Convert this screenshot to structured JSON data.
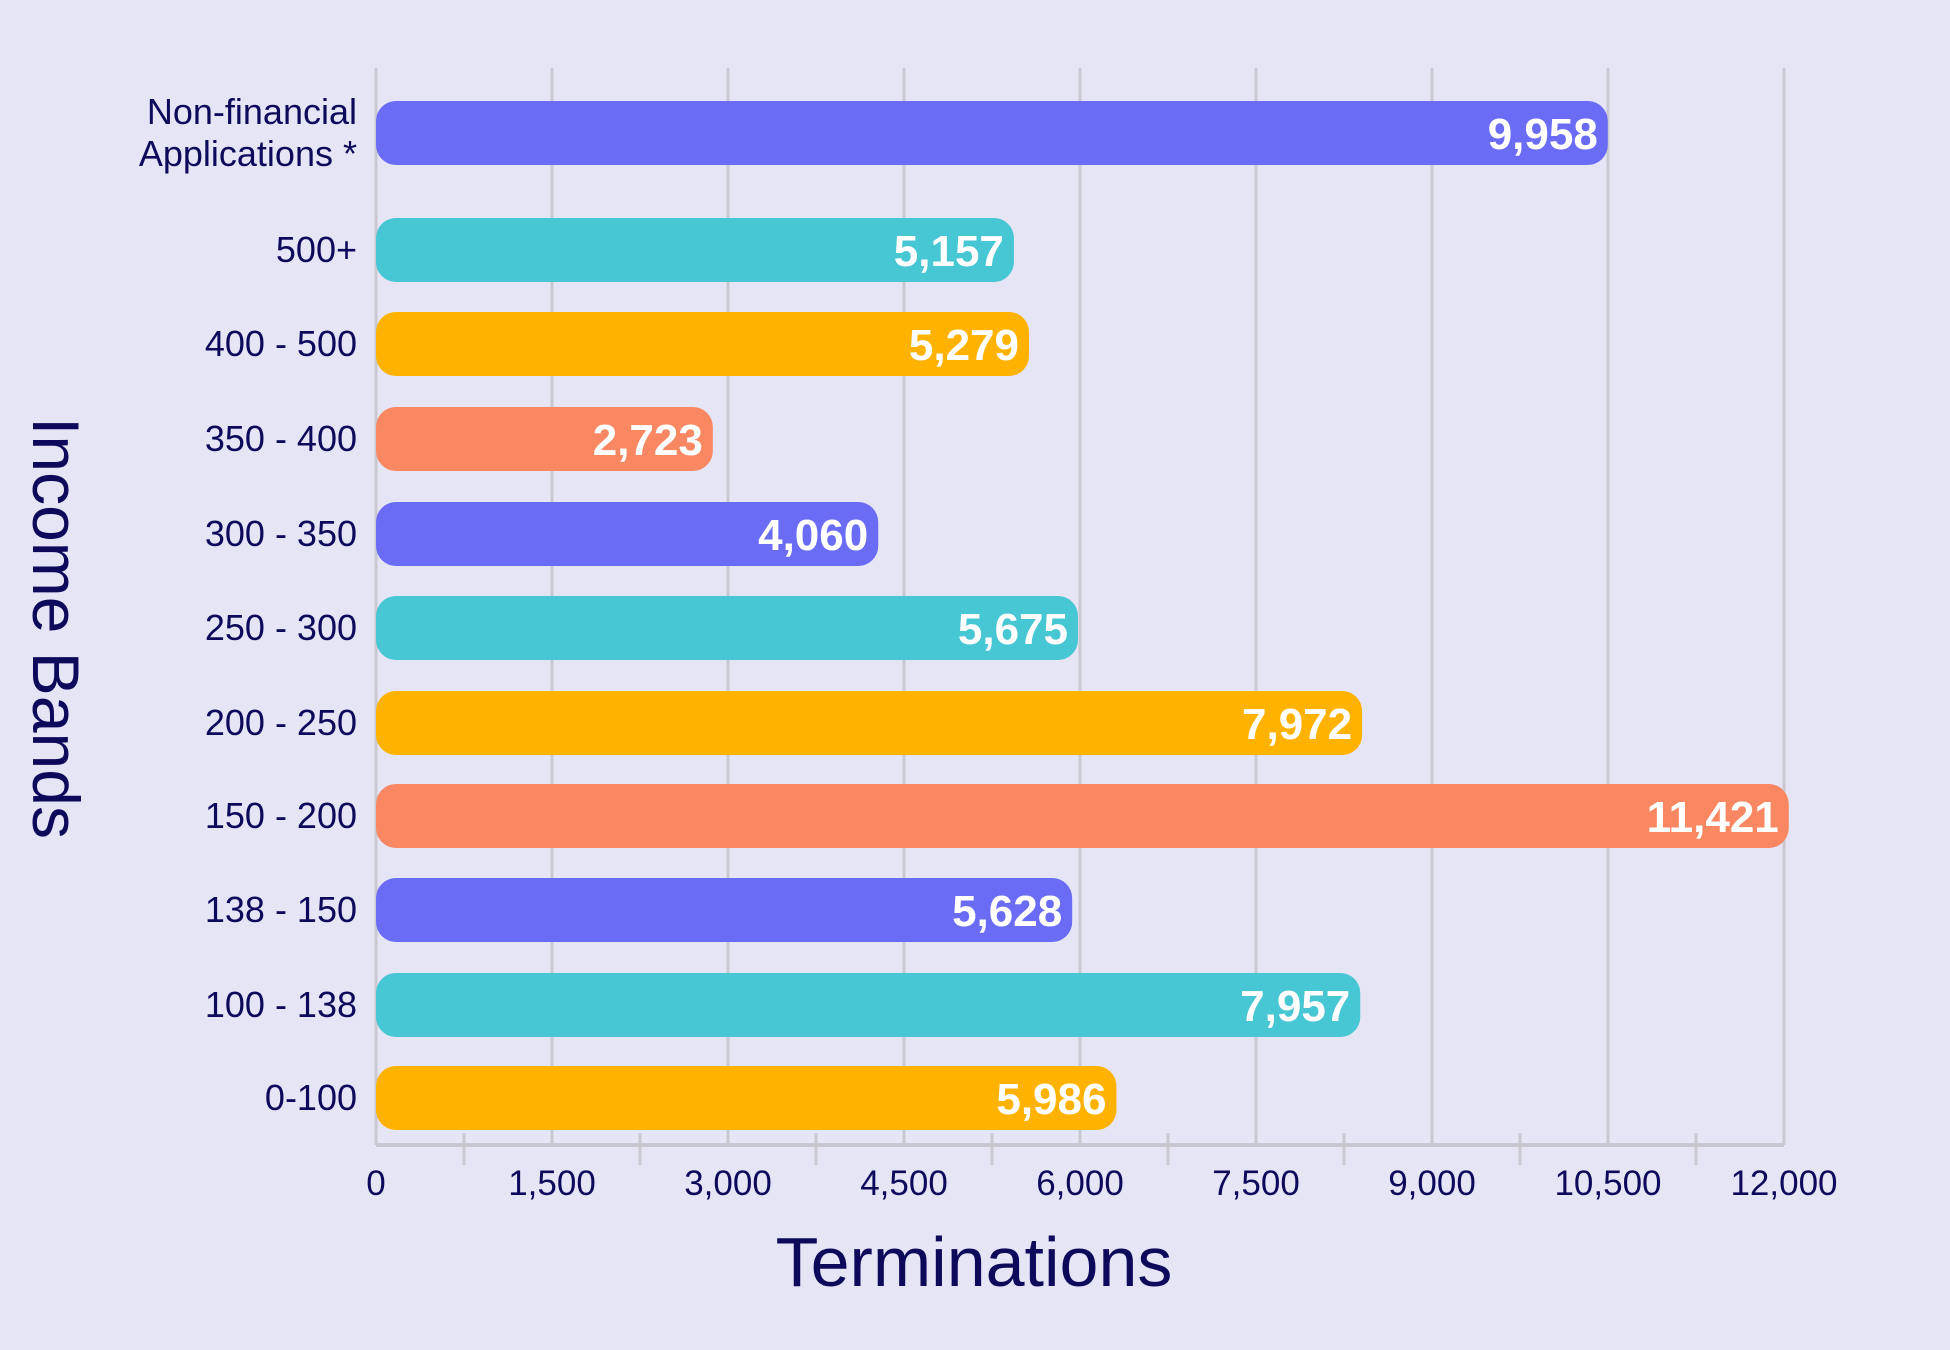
{
  "chart_data": {
    "type": "bar",
    "orientation": "horizontal",
    "title": "",
    "xlabel": "Terminations",
    "ylabel": "Income Bands",
    "xlim": [
      0,
      12000
    ],
    "x_ticks": [
      "0",
      "1,500",
      "3,000",
      "4,500",
      "6,000",
      "7,500",
      "9,000",
      "10,500",
      "12,000"
    ],
    "grid": true,
    "categories": [
      "Non-financial\nApplications *",
      "500+",
      "400 - 500",
      "350 - 400",
      "300 - 350",
      "250 - 300",
      "200 - 250",
      "150 - 200",
      "138 - 150",
      "100 - 138",
      "0-100"
    ],
    "values": [
      9958,
      5157,
      5279,
      2723,
      4060,
      5675,
      7972,
      11421,
      5628,
      7957,
      5986
    ],
    "value_labels": [
      "9,958",
      "5,157",
      "5,279",
      "2,723",
      "4,060",
      "5,675",
      "7,972",
      "11,421",
      "5,628",
      "7,957",
      "5,986"
    ],
    "colors": [
      "#6b6cf6",
      "#47c6d3",
      "#ffb300",
      "#f98862",
      "#6b6cf6",
      "#47c6d3",
      "#ffb300",
      "#f98862",
      "#6b6cf6",
      "#47c6d3",
      "#ffb300"
    ]
  }
}
